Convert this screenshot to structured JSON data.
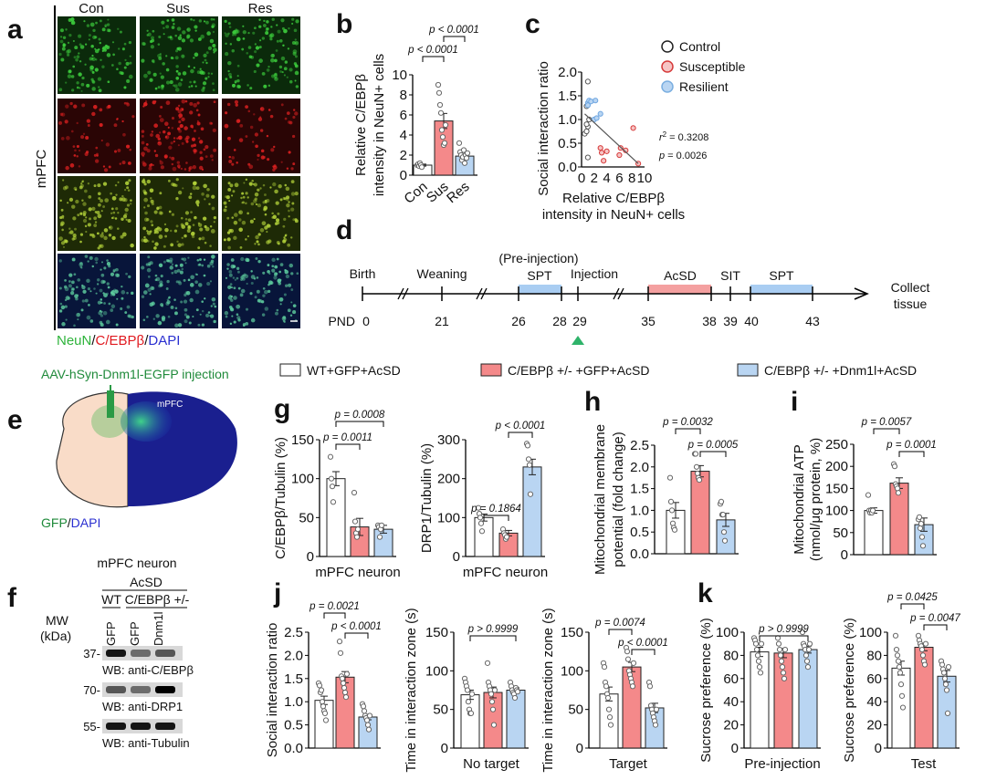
{
  "panels": {
    "a": "a",
    "b": "b",
    "c": "c",
    "d": "d",
    "e": "e",
    "f": "f",
    "g": "g",
    "h": "h",
    "i": "i",
    "j": "j",
    "k": "k"
  },
  "colors": {
    "control": "#ffffff",
    "susceptible": "#f4898a",
    "resilient": "#b9d5f2",
    "neun": "#2db33a",
    "cebpb": "#e0191f",
    "dapi": "#2a2fd0",
    "timeline_red": "#f4a0a0",
    "timeline_blue": "#a9cdf2",
    "injection_marker": "#2fb36a"
  },
  "panel_a": {
    "columns": [
      "Con",
      "Sus",
      "Res"
    ],
    "row_label": "mPFC",
    "stain_legend": {
      "neun": "NeuN",
      "sep1": "/",
      "cebpb": "C/EBPβ",
      "sep2": "/",
      "dapi": "DAPI"
    }
  },
  "scatter_legend": [
    "Control",
    "Susceptible",
    "Resilient"
  ],
  "scatter_stats": {
    "r2_label": "r",
    "r2_sup": "2",
    "r2_value": " = 0.3208",
    "p_label": "p",
    "p_value": " = 0.0026"
  },
  "timeline": {
    "pnd_label": "PND",
    "events": {
      "birth": "Birth",
      "weaning": "Weaning",
      "pre_injection": "(Pre-injection)",
      "spt1": "SPT",
      "injection": "Injection",
      "acsd": "AcSD",
      "sit": "SIT",
      "spt2": "SPT",
      "collect1": "Collect",
      "collect2": "tissue"
    },
    "days": [
      "0",
      "21",
      "26",
      "28",
      "29",
      "35",
      "38",
      "39",
      "40",
      "43"
    ]
  },
  "group_legend": [
    "WT+GFP+AcSD",
    "C/EBPβ +/- +GFP+AcSD",
    "C/EBPβ +/- +Dnm1l+AcSD"
  ],
  "panel_e": {
    "title": "AAV-hSyn-Dnm1l-EGFP injection",
    "region": "mPFC",
    "stain": {
      "gfp": "GFP",
      "sep": "/",
      "dapi": "DAPI"
    }
  },
  "panel_f": {
    "title": "mPFC neuron",
    "condition": "AcSD",
    "genotype_wt": "WT",
    "genotype_het": "C/EBPβ +/-",
    "lanes": [
      "GFP",
      "GFP",
      "Dnm1l"
    ],
    "mw_label1": "MW",
    "mw_label2": "(kDa)",
    "blots": [
      {
        "mw": "37-",
        "label": "WB: anti-C/EBPβ",
        "intensity": [
          0.9,
          0.5,
          0.6
        ]
      },
      {
        "mw": "70-",
        "label": "WB: anti-DRP1",
        "intensity": [
          0.6,
          0.5,
          1.0
        ]
      },
      {
        "mw": "55-",
        "label": "WB: anti-Tubulin",
        "intensity": [
          0.9,
          0.9,
          0.9
        ]
      }
    ]
  },
  "chart_data": [
    {
      "id": "b",
      "type": "bar",
      "ylabel": [
        "Relative C/EBPβ",
        "intensity in NeuN+ cells"
      ],
      "categories": [
        "Con",
        "Sus",
        "Res"
      ],
      "ylim": [
        0,
        10
      ],
      "yticks": [
        0,
        2,
        4,
        6,
        8,
        10
      ],
      "values": [
        1.0,
        5.4,
        1.9
      ],
      "sem": [
        0.1,
        0.75,
        0.2
      ],
      "points": [
        [
          1.0,
          1.1,
          0.9,
          1.2,
          1.0,
          0.8
        ],
        [
          9.0,
          8.2,
          7.0,
          6.2,
          4.5,
          3.8,
          3.0,
          3.2,
          5.0
        ],
        [
          3.2,
          2.3,
          2.0,
          1.5,
          1.8,
          2.5,
          1.2,
          2.0,
          1.7,
          2.2
        ]
      ],
      "comparisons": [
        {
          "groups": [
            0,
            1
          ],
          "label": "p < 0.0001"
        },
        {
          "groups": [
            1,
            2
          ],
          "label": "p < 0.0001"
        }
      ]
    },
    {
      "id": "c",
      "type": "scatter",
      "ylabel": "Social interaction ratio",
      "xlabel": [
        "Relative C/EBPβ",
        "intensity in NeuN+ cells"
      ],
      "xlim": [
        0,
        10
      ],
      "ylim": [
        0,
        2
      ],
      "xticks": [
        0,
        2,
        4,
        6,
        8,
        10
      ],
      "yticks": [
        "0.0",
        "0.5",
        "1.0",
        "1.5",
        "2.0"
      ],
      "series": [
        {
          "name": "Control",
          "points": [
            [
              1.0,
              1.8
            ],
            [
              0.8,
              1.28
            ],
            [
              0.5,
              0.7
            ],
            [
              0.8,
              0.75
            ],
            [
              1.0,
              0.85
            ],
            [
              1.0,
              0.2
            ],
            [
              1.2,
              1.0
            ],
            [
              0.8,
              0.9
            ]
          ]
        },
        {
          "name": "Susceptible",
          "points": [
            [
              3.0,
              0.4
            ],
            [
              3.2,
              0.3
            ],
            [
              4.0,
              0.33
            ],
            [
              3.5,
              0.13
            ],
            [
              6.0,
              0.25
            ],
            [
              6.2,
              0.4
            ],
            [
              7.0,
              0.35
            ],
            [
              8.2,
              0.82
            ],
            [
              9.0,
              0.07
            ]
          ]
        },
        {
          "name": "Resilient",
          "points": [
            [
              1.0,
              1.35
            ],
            [
              1.2,
              1.4
            ],
            [
              1.5,
              1.38
            ],
            [
              2.2,
              1.4
            ],
            [
              3.0,
              1.12
            ],
            [
              2.0,
              1.0
            ],
            [
              2.4,
              1.03
            ],
            [
              1.0,
              1.3
            ]
          ]
        }
      ],
      "fit": [
        [
          0.5,
          1.12
        ],
        [
          9.0,
          0.07
        ]
      ]
    },
    {
      "id": "g1",
      "type": "bar",
      "ylabel": "C/EBPβ/Tubulin (%)",
      "xlabel": "mPFC neuron",
      "ylim": [
        0,
        150
      ],
      "yticks": [
        0,
        50,
        100,
        150
      ],
      "values": [
        100,
        38,
        35
      ],
      "sem": [
        9,
        11,
        5
      ],
      "points": [
        [
          128,
          100,
          90,
          70
        ],
        [
          82,
          45,
          30,
          25,
          35
        ],
        [
          40,
          38,
          25,
          35,
          40
        ]
      ],
      "comparisons": [
        {
          "groups": [
            0,
            1
          ],
          "label": "p = 0.0011"
        },
        {
          "groups": [
            0,
            2
          ],
          "label": "p = 0.0008"
        }
      ]
    },
    {
      "id": "g2",
      "type": "bar",
      "ylabel": "DRP1/Tubulin (%)",
      "xlabel": "mPFC neuron",
      "ylim": [
        0,
        300
      ],
      "yticks": [
        0,
        100,
        200,
        300
      ],
      "values": [
        100,
        60,
        230
      ],
      "sem": [
        9,
        7,
        20
      ],
      "points": [
        [
          125,
          110,
          100,
          85,
          65
        ],
        [
          70,
          60,
          55,
          45,
          50
        ],
        [
          290,
          285,
          250,
          235,
          160
        ]
      ],
      "comparisons": [
        {
          "groups": [
            0,
            1
          ],
          "label": "p = 0.1864"
        },
        {
          "groups": [
            1,
            2
          ],
          "label": "p < 0.0001"
        }
      ]
    },
    {
      "id": "h",
      "type": "bar",
      "ylabel": [
        "Mitochondrial membrane",
        "potential (fold change)"
      ],
      "ylim": [
        0,
        2.5
      ],
      "yticks": [
        "0.0",
        "0.5",
        "1.0",
        "1.5",
        "2.0",
        "2.5"
      ],
      "values": [
        1.0,
        1.9,
        0.78
      ],
      "sem": [
        0.18,
        0.13,
        0.15
      ],
      "points": [
        [
          1.75,
          1.2,
          1.0,
          0.7,
          0.6,
          0.55
        ],
        [
          2.3,
          2.3,
          2.0,
          1.85,
          1.75,
          1.7
        ],
        [
          1.15,
          1.2,
          0.9,
          0.9,
          0.5,
          0.3
        ]
      ],
      "comparisons": [
        {
          "groups": [
            0,
            1
          ],
          "label": "p = 0.0032"
        },
        {
          "groups": [
            1,
            2
          ],
          "label": "p = 0.0005"
        }
      ]
    },
    {
      "id": "i",
      "type": "bar",
      "ylabel": [
        "Mitochondrial ATP",
        "(nmol/μg protein, %)"
      ],
      "ylim": [
        0,
        250
      ],
      "yticks": [
        0,
        50,
        100,
        150,
        200,
        250
      ],
      "values": [
        100,
        162,
        68
      ],
      "sem": [
        6,
        12,
        15
      ],
      "points": [
        [
          135,
          100,
          95,
          100,
          95,
          100
        ],
        [
          205,
          200,
          160,
          155,
          150,
          140
        ],
        [
          80,
          85,
          60,
          70,
          40,
          20
        ]
      ],
      "comparisons": [
        {
          "groups": [
            0,
            1
          ],
          "label": "p = 0.0057"
        },
        {
          "groups": [
            1,
            2
          ],
          "label": "p = 0.0001"
        }
      ]
    },
    {
      "id": "j1",
      "type": "bar",
      "ylabel": "Social interaction ratio",
      "ylim": [
        0,
        2.5
      ],
      "yticks": [
        "0.0",
        "0.5",
        "1.0",
        "1.5",
        "2.0",
        "2.5"
      ],
      "values": [
        1.03,
        1.53,
        0.67
      ],
      "sem": [
        0.09,
        0.12,
        0.06
      ],
      "points": [
        [
          1.4,
          1.35,
          1.2,
          1.25,
          1.0,
          0.9,
          0.8,
          0.75,
          0.6
        ],
        [
          2.3,
          2.05,
          1.55,
          1.5,
          1.4,
          1.3,
          1.2,
          1.1,
          1.6
        ],
        [
          0.95,
          0.9,
          0.8,
          0.7,
          0.65,
          0.6,
          0.5,
          0.4,
          0.7
        ]
      ],
      "comparisons": [
        {
          "groups": [
            0,
            1
          ],
          "label": "p = 0.0021"
        },
        {
          "groups": [
            1,
            2
          ],
          "label": "p < 0.0001"
        }
      ]
    },
    {
      "id": "j2",
      "type": "bar",
      "ylabel": "Time in interaction zone (s)",
      "xlabel": "No target",
      "ylim": [
        0,
        150
      ],
      "yticks": [
        0,
        50,
        100,
        150
      ],
      "values": [
        69,
        72,
        75
      ],
      "sem": [
        6,
        7,
        3
      ],
      "points": [
        [
          90,
          85,
          80,
          75,
          60,
          50,
          45,
          45,
          70
        ],
        [
          110,
          85,
          80,
          75,
          70,
          60,
          50,
          30,
          75
        ],
        [
          85,
          80,
          75,
          72,
          70,
          65,
          78,
          75,
          73
        ]
      ],
      "comparisons": [
        {
          "groups": [
            0,
            2
          ],
          "label": "p > 0.9999"
        }
      ]
    },
    {
      "id": "j3",
      "type": "bar",
      "ylabel": "Time in interaction zone (s)",
      "xlabel": "Target",
      "ylim": [
        0,
        150
      ],
      "yticks": [
        0,
        50,
        100,
        150
      ],
      "values": [
        70,
        105,
        52
      ],
      "sem": [
        9,
        6,
        6
      ],
      "points": [
        [
          110,
          105,
          85,
          80,
          70,
          65,
          50,
          40,
          30
        ],
        [
          130,
          125,
          115,
          100,
          95,
          90,
          85,
          80,
          110
        ],
        [
          85,
          80,
          55,
          50,
          45,
          40,
          35,
          30,
          50
        ]
      ],
      "comparisons": [
        {
          "groups": [
            0,
            1
          ],
          "label": "p = 0.0074"
        },
        {
          "groups": [
            1,
            2
          ],
          "label": "p < 0.0001"
        }
      ]
    },
    {
      "id": "k1",
      "type": "bar",
      "ylabel": "Sucrose preference (%)",
      "xlabel": "Pre-injection",
      "ylim": [
        0,
        100
      ],
      "yticks": [
        0,
        20,
        40,
        60,
        80,
        100
      ],
      "values": [
        83,
        82,
        85
      ],
      "sem": [
        4,
        4,
        3
      ],
      "points": [
        [
          95,
          93,
          90,
          85,
          80,
          75,
          70,
          65,
          90
        ],
        [
          95,
          90,
          85,
          80,
          75,
          70,
          65,
          60,
          85
        ],
        [
          100,
          90,
          88,
          85,
          80,
          75,
          70,
          85,
          90
        ]
      ],
      "comparisons": [
        {
          "groups": [
            0,
            2
          ],
          "label": "p > 0.9999"
        }
      ]
    },
    {
      "id": "k2",
      "type": "bar",
      "ylabel": "Sucrose preference (%)",
      "xlabel": "Test",
      "ylim": [
        0,
        100
      ],
      "yticks": [
        0,
        20,
        40,
        60,
        80,
        100
      ],
      "values": [
        69,
        87,
        62
      ],
      "sem": [
        6,
        3,
        5
      ],
      "points": [
        [
          97,
          85,
          80,
          75,
          70,
          65,
          55,
          45,
          35
        ],
        [
          97,
          93,
          90,
          88,
          85,
          80,
          75,
          72,
          90
        ],
        [
          75,
          72,
          68,
          65,
          60,
          55,
          50,
          30,
          70
        ]
      ],
      "comparisons": [
        {
          "groups": [
            0,
            1
          ],
          "label": "p = 0.0425"
        },
        {
          "groups": [
            1,
            2
          ],
          "label": "p = 0.0047"
        }
      ]
    }
  ]
}
